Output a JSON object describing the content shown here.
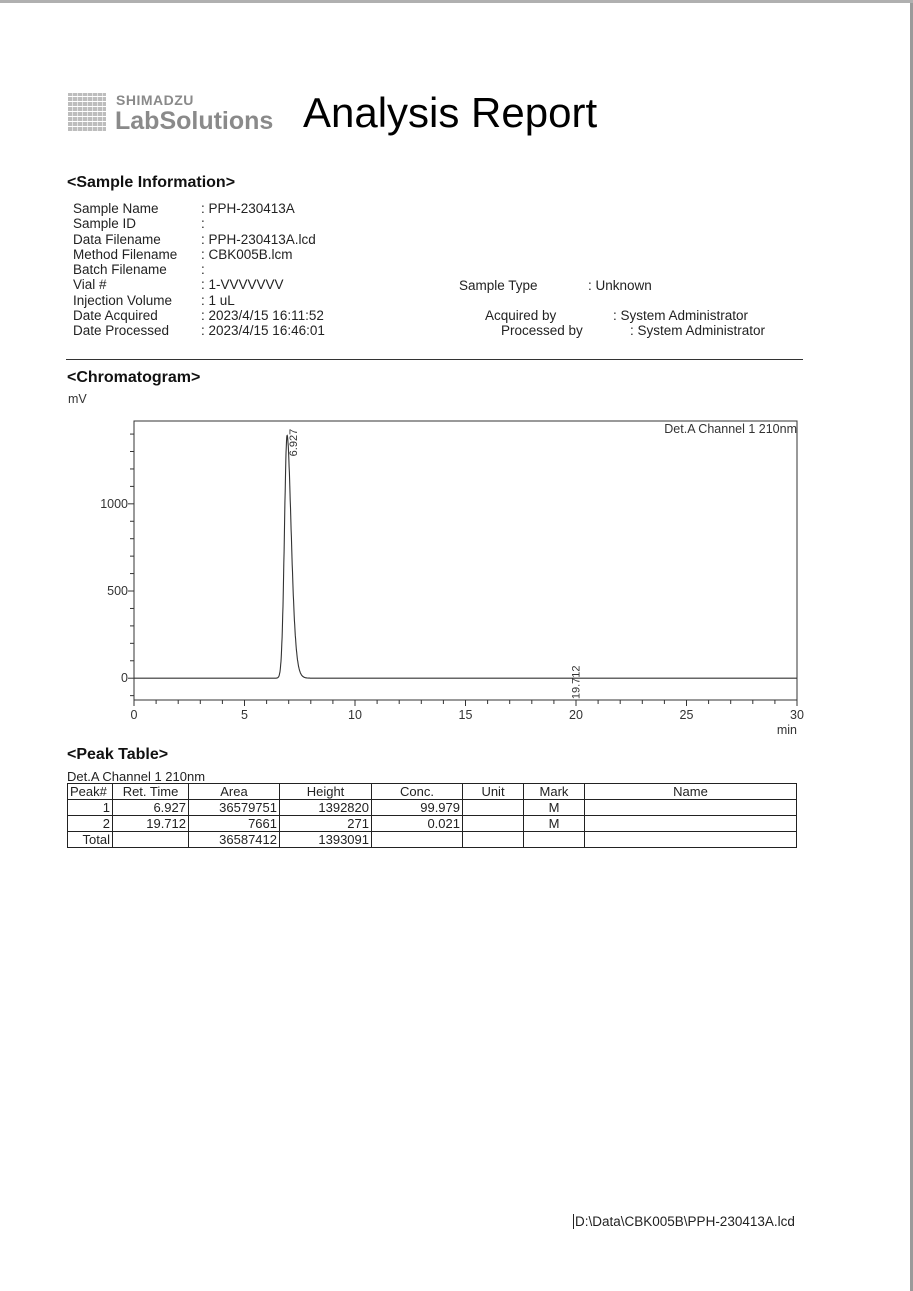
{
  "header": {
    "logo_brand": "SHIMADZU",
    "logo_product": "LabSolutions",
    "title": "Analysis Report"
  },
  "sample_info": {
    "heading": "<Sample Information>",
    "rows": [
      {
        "label": "Sample Name",
        "value": ": PPH-230413A"
      },
      {
        "label": "Sample ID",
        "value": ":"
      },
      {
        "label": "Data Filename",
        "value": ": PPH-230413A.lcd"
      },
      {
        "label": "Method Filename",
        "value": ": CBK005B.lcm"
      },
      {
        "label": "Batch Filename",
        "value": ":"
      },
      {
        "label": "Vial #",
        "value": ": 1-VVVVVVV"
      },
      {
        "label": "Injection Volume",
        "value": ": 1 uL"
      },
      {
        "label": "Date Acquired",
        "value": ": 2023/4/15 16:11:52"
      },
      {
        "label": "Date Processed",
        "value": ": 2023/4/15 16:46:01"
      }
    ],
    "sample_type_label": "Sample Type",
    "sample_type_value": ": Unknown",
    "acquired_by_label": "Acquired by",
    "acquired_by_value": ": System Administrator",
    "processed_by_label": "Processed by",
    "processed_by_value": ": System Administrator"
  },
  "chromatogram": {
    "heading": "<Chromatogram>"
  },
  "chart_data": {
    "type": "line",
    "ylabel": "mV",
    "xlabel": "min",
    "legend": "Det.A Channel 1 210nm",
    "legend_placement": "top-right",
    "xlim": [
      0,
      30
    ],
    "ylim": [
      -125,
      1475
    ],
    "xticks": [
      0,
      5,
      10,
      15,
      20,
      25,
      30
    ],
    "yticks": [
      0,
      500,
      1000
    ],
    "peaks": [
      {
        "rt": 6.927,
        "label": "6.927",
        "height_mV": 1392.82
      },
      {
        "rt": 19.712,
        "label": "19.712",
        "height_mV": 0.271
      }
    ],
    "grid": false,
    "color": "#333333"
  },
  "peak_table": {
    "heading": "<Peak Table>",
    "channel": "Det.A Channel 1 210nm",
    "columns": [
      "Peak#",
      "Ret. Time",
      "Area",
      "Height",
      "Conc.",
      "Unit",
      "Mark",
      "Name"
    ],
    "rows": [
      [
        "1",
        "6.927",
        "36579751",
        "1392820",
        "99.979",
        "",
        "M",
        ""
      ],
      [
        "2",
        "19.712",
        "7661",
        "271",
        "0.021",
        "",
        "M",
        ""
      ],
      [
        "Total",
        "",
        "36587412",
        "1393091",
        "",
        "",
        "",
        ""
      ]
    ]
  },
  "footer": {
    "path": "D:\\Data\\CBK005B\\PPH-230413A.lcd"
  }
}
